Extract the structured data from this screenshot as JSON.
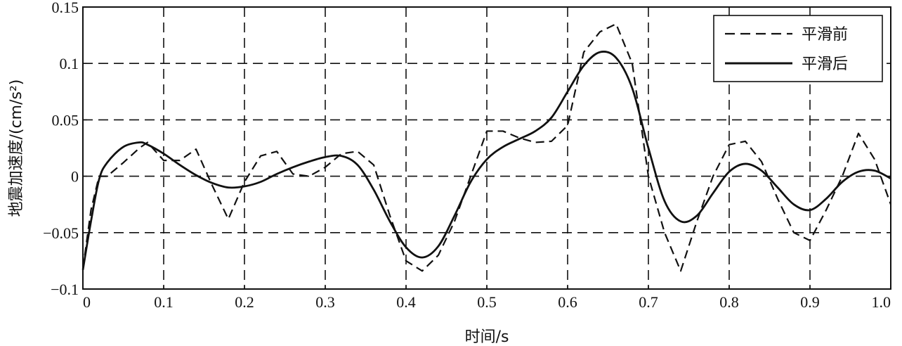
{
  "chart_data": {
    "type": "line",
    "xlabel": "时间/s",
    "ylabel": "地震加速度/(cm/s²)",
    "xlim": [
      0,
      1.0
    ],
    "ylim": [
      -0.1,
      0.15
    ],
    "x_ticks": [
      "0",
      "0.1",
      "0.2",
      "0.3",
      "0.4",
      "0.5",
      "0.6",
      "0.7",
      "0.8",
      "0.9",
      "1.0"
    ],
    "y_ticks": [
      "−0.1",
      "−0.05",
      "0",
      "0.05",
      "0.1",
      "0.15"
    ],
    "x_tick_values": [
      0,
      0.1,
      0.2,
      0.3,
      0.4,
      0.5,
      0.6,
      0.7,
      0.8,
      0.9,
      1.0
    ],
    "y_tick_values": [
      -0.1,
      -0.05,
      0,
      0.05,
      0.1,
      0.15
    ],
    "grid": true,
    "grid_style": "dashed",
    "legend_position": "top-right",
    "series": [
      {
        "name": "平滑前",
        "style": "dashed",
        "color": "#111111",
        "x": [
          0,
          0.01,
          0.02,
          0.03,
          0.05,
          0.07,
          0.08,
          0.1,
          0.12,
          0.14,
          0.16,
          0.18,
          0.2,
          0.22,
          0.24,
          0.26,
          0.28,
          0.3,
          0.32,
          0.34,
          0.36,
          0.38,
          0.4,
          0.42,
          0.44,
          0.46,
          0.48,
          0.5,
          0.52,
          0.54,
          0.56,
          0.58,
          0.6,
          0.62,
          0.64,
          0.66,
          0.68,
          0.7,
          0.72,
          0.74,
          0.76,
          0.78,
          0.8,
          0.82,
          0.84,
          0.86,
          0.88,
          0.9,
          0.92,
          0.94,
          0.96,
          0.98,
          1.0
        ],
        "y": [
          -0.082,
          -0.03,
          0.0,
          0.0,
          0.012,
          0.025,
          0.03,
          0.014,
          0.014,
          0.024,
          -0.008,
          -0.038,
          -0.005,
          0.018,
          0.022,
          0.002,
          0.0,
          0.008,
          0.02,
          0.022,
          0.01,
          -0.035,
          -0.075,
          -0.084,
          -0.07,
          -0.04,
          0.0,
          0.04,
          0.04,
          0.034,
          0.03,
          0.031,
          0.045,
          0.11,
          0.128,
          0.135,
          0.1,
          0.0,
          -0.05,
          -0.084,
          -0.04,
          0.0,
          0.028,
          0.031,
          0.013,
          -0.02,
          -0.05,
          -0.057,
          -0.03,
          0.0,
          0.038,
          0.015,
          -0.025
        ]
      },
      {
        "name": "平滑后",
        "style": "solid",
        "color": "#111111",
        "x": [
          0,
          0.01,
          0.02,
          0.03,
          0.05,
          0.07,
          0.08,
          0.1,
          0.12,
          0.14,
          0.16,
          0.18,
          0.2,
          0.22,
          0.24,
          0.26,
          0.28,
          0.3,
          0.32,
          0.34,
          0.36,
          0.38,
          0.4,
          0.42,
          0.44,
          0.46,
          0.48,
          0.5,
          0.52,
          0.54,
          0.56,
          0.58,
          0.6,
          0.62,
          0.64,
          0.66,
          0.68,
          0.7,
          0.72,
          0.74,
          0.76,
          0.78,
          0.8,
          0.82,
          0.84,
          0.86,
          0.88,
          0.9,
          0.92,
          0.94,
          0.96,
          0.98,
          1.0
        ],
        "y": [
          -0.083,
          -0.04,
          -0.003,
          0.012,
          0.026,
          0.03,
          0.028,
          0.02,
          0.01,
          0.001,
          -0.006,
          -0.01,
          -0.009,
          -0.005,
          0.002,
          0.008,
          0.013,
          0.017,
          0.018,
          0.01,
          -0.012,
          -0.04,
          -0.063,
          -0.072,
          -0.062,
          -0.035,
          -0.005,
          0.015,
          0.026,
          0.033,
          0.04,
          0.052,
          0.075,
          0.098,
          0.11,
          0.105,
          0.078,
          0.025,
          -0.022,
          -0.04,
          -0.035,
          -0.015,
          0.004,
          0.011,
          0.005,
          -0.01,
          -0.025,
          -0.03,
          -0.02,
          -0.005,
          0.004,
          0.005,
          -0.002
        ]
      }
    ]
  }
}
